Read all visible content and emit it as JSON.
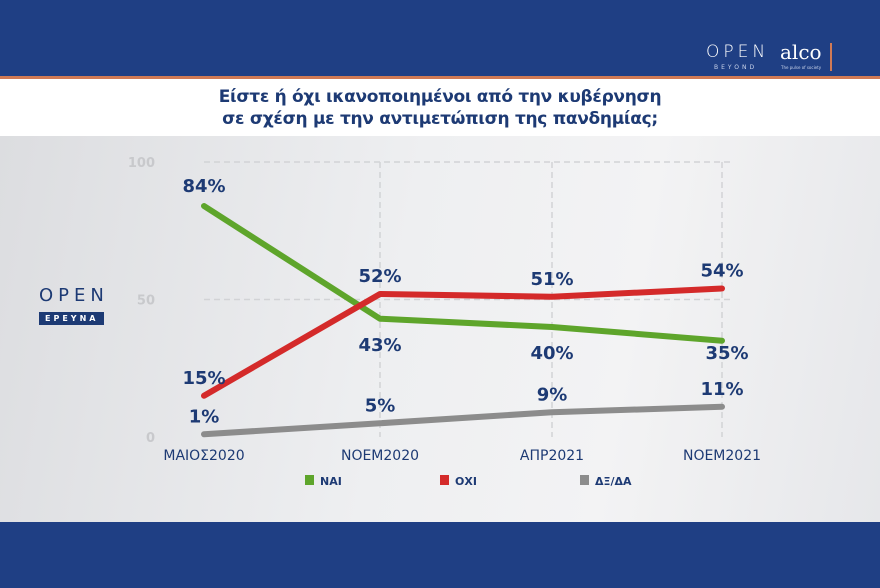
{
  "header": {
    "logo_open": "OPEN",
    "logo_beyond": "BEYOND",
    "logo_alco": "alco",
    "logo_alco_tagline": "The pulse of society"
  },
  "title_line1": "Είστε ή όχι ικανοποιημένοι από την κυβέρνηση",
  "title_line2": "σε σχέση με την αντιμετώπιση της πανδημίας;",
  "side_logo": {
    "open": "OPEN",
    "ereyna": "ΕΡΕΥΝΑ"
  },
  "colors": {
    "nai": "#5ea52b",
    "oxi": "#d42a2a",
    "dx": "#8c8c8c",
    "label": "#1d3a74"
  },
  "chart_data": {
    "type": "line",
    "categories": [
      "ΜΑΙΟΣ2020",
      "ΝΟΕΜ2020",
      "ΑΠΡ2021",
      "ΝΟΕΜ2021"
    ],
    "ylim": [
      0,
      100
    ],
    "yticks": [
      "0",
      "50",
      "100"
    ],
    "grid": true,
    "legend_position": "bottom",
    "series": [
      {
        "name": "ΝΑΙ",
        "values": [
          84,
          43,
          40,
          35
        ],
        "labels": [
          "84%",
          "43%",
          "40%",
          "35%"
        ]
      },
      {
        "name": "ΟΧΙ",
        "values": [
          15,
          52,
          51,
          54
        ],
        "labels": [
          "15%",
          "52%",
          "51%",
          "54%"
        ]
      },
      {
        "name": "ΔΞ/ΔΑ",
        "values": [
          1,
          5,
          9,
          11
        ],
        "labels": [
          "1%",
          "5%",
          "9%",
          "11%"
        ]
      }
    ]
  }
}
